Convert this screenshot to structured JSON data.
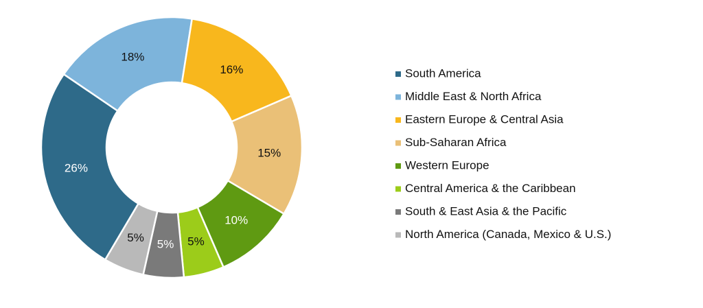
{
  "chart_data": {
    "type": "donut",
    "categories": [
      "South America",
      "Middle East & North Africa",
      "Eastern Europe & Central Asia",
      "Sub-Saharan Africa",
      "Western Europe",
      "Central America & the Caribbean",
      "South & East Asia & the Pacific",
      "North America (Canada, Mexico & U.S.)"
    ],
    "values": [
      26,
      18,
      16,
      15,
      10,
      5,
      5,
      5
    ],
    "value_labels": [
      "26%",
      "18%",
      "16%",
      "15%",
      "10%",
      "5%",
      "5%",
      "5%"
    ],
    "colors": [
      "#2e6a89",
      "#7db4db",
      "#f8b71d",
      "#eac077",
      "#5f9a12",
      "#9ccc1a",
      "#7a7a7a",
      "#b9b9b9"
    ]
  }
}
